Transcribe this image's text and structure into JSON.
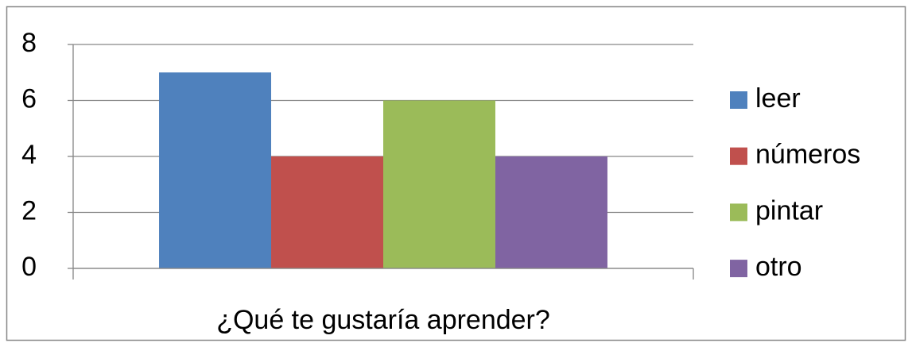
{
  "chart_data": {
    "type": "bar",
    "categories": [
      "¿Qué te gustaría aprender?"
    ],
    "series": [
      {
        "name": "leer",
        "color": "#4f81bd",
        "values": [
          7
        ]
      },
      {
        "name": "números",
        "color": "#c0504d",
        "values": [
          4
        ]
      },
      {
        "name": "pintar",
        "color": "#9bbb59",
        "values": [
          6
        ]
      },
      {
        "name": "otro",
        "color": "#8064a2",
        "values": [
          4
        ]
      }
    ],
    "ylim": [
      0,
      8
    ],
    "yticks": [
      0,
      2,
      4,
      6,
      8
    ],
    "grid": true,
    "legend": "right"
  }
}
